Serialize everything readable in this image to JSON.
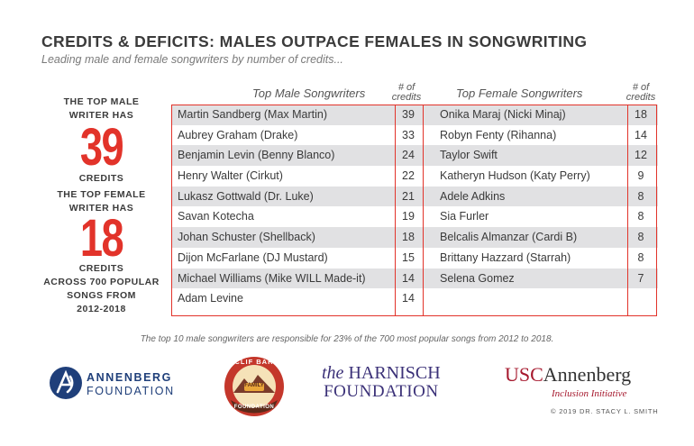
{
  "title": "CREDITS & DEFICITS: MALES OUTPACE FEMALES IN SONGWRITING",
  "subtitle": "Leading male and female songwriters by number of credits...",
  "sidebar": {
    "male_line1": "THE TOP MALE",
    "male_line2": "WRITER HAS",
    "male_value": "39",
    "male_credits": "CREDITS",
    "female_line1": "THE TOP FEMALE",
    "female_line2": "WRITER HAS",
    "female_value": "18",
    "female_credits": "CREDITS",
    "context_line1": "ACROSS 700 POPULAR",
    "context_line2": "SONGS FROM",
    "context_line3": "2012-2018"
  },
  "chart_data": {
    "type": "table",
    "columns": [
      "Top Male Songwriters",
      "# of credits",
      "Top Female Songwriters",
      "# of credits"
    ],
    "male_header": "Top Male Songwriters",
    "female_header": "Top Female Songwriters",
    "credits_header_1": "# of",
    "credits_header_2": "credits",
    "male": [
      {
        "name": "Martin Sandberg (Max Martin)",
        "credits": "39"
      },
      {
        "name": "Aubrey Graham (Drake)",
        "credits": "33"
      },
      {
        "name": "Benjamin Levin (Benny Blanco)",
        "credits": "24"
      },
      {
        "name": "Henry Walter (Cirkut)",
        "credits": "22"
      },
      {
        "name": "Lukasz Gottwald (Dr. Luke)",
        "credits": "21"
      },
      {
        "name": "Savan Kotecha",
        "credits": "19"
      },
      {
        "name": "Johan Schuster (Shellback)",
        "credits": "18"
      },
      {
        "name": "Dijon McFarlane (DJ Mustard)",
        "credits": "15"
      },
      {
        "name": "Michael Williams (Mike WILL Made-it)",
        "credits": "14"
      },
      {
        "name": "Adam Levine",
        "credits": "14"
      }
    ],
    "female": [
      {
        "name": "Onika Maraj (Nicki Minaj)",
        "credits": "18"
      },
      {
        "name": "Robyn Fenty (Rihanna)",
        "credits": "14"
      },
      {
        "name": "Taylor Swift",
        "credits": "12"
      },
      {
        "name": "Katheryn Hudson (Katy Perry)",
        "credits": "9"
      },
      {
        "name": "Adele Adkins",
        "credits": "8"
      },
      {
        "name": "Sia Furler",
        "credits": "8"
      },
      {
        "name": "Belcalis Almanzar (Cardi B)",
        "credits": "8"
      },
      {
        "name": "Brittany Hazzard (Starrah)",
        "credits": "8"
      },
      {
        "name": "Selena Gomez",
        "credits": "7"
      },
      {
        "name": "",
        "credits": ""
      }
    ]
  },
  "footnote": "The top 10 male songwriters are responsible for 23% of the 700 most popular songs from 2012 to 2018.",
  "logos": {
    "annenberg_line1": "ANNENBERG",
    "annenberg_line2": "FOUNDATION",
    "clif_bar_top": "CLIF BAR",
    "clif_bar_mid": "FAMILY",
    "clif_bar_bottom": "FOUNDATION",
    "harnisch_line1_prefix": "the",
    "harnisch_line1": "HARNISCH",
    "harnisch_line2": "FOUNDATION",
    "usc_prefix": "USC",
    "usc_name": "Annenberg",
    "usc_sub": "Inclusion Initiative",
    "copyright": "© 2019 DR. STACY L. SMITH"
  },
  "colors": {
    "accent_red": "#e2332a",
    "row_shade": "#e1e1e3",
    "annenberg_blue": "#1f3f7a",
    "harnisch_purple": "#3b3178",
    "usc_red": "#a6192e"
  }
}
